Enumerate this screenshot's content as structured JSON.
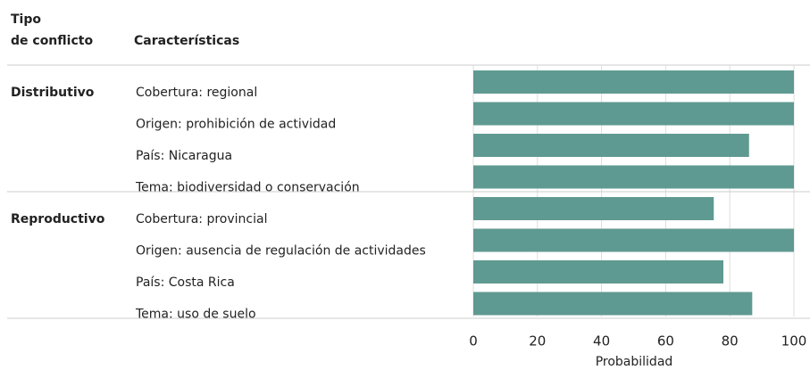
{
  "chart_data": {
    "type": "bar",
    "group_header_lines": [
      "Tipo",
      "de conflicto"
    ],
    "category_header": "Características",
    "groups": [
      {
        "name": "Distributivo",
        "categories": [
          "Cobertura: regional",
          "Origen: prohibición de actividad",
          "País: Nicaragua",
          "Tema: biodiversidad o conservación"
        ],
        "values": [
          100,
          100,
          86,
          100
        ]
      },
      {
        "name": "Reproductivo",
        "categories": [
          "Cobertura: provincial",
          "Origen: ausencia de regulación de actividades",
          "País: Costa Rica",
          "Tema: uso de suelo"
        ],
        "values": [
          75,
          100,
          78,
          87
        ]
      }
    ],
    "color": "#5f9a92",
    "xlabel": "Probabilidad",
    "xlim": [
      0,
      100
    ],
    "xticks": [
      0,
      20,
      40,
      60,
      80,
      100
    ],
    "grid": true
  }
}
